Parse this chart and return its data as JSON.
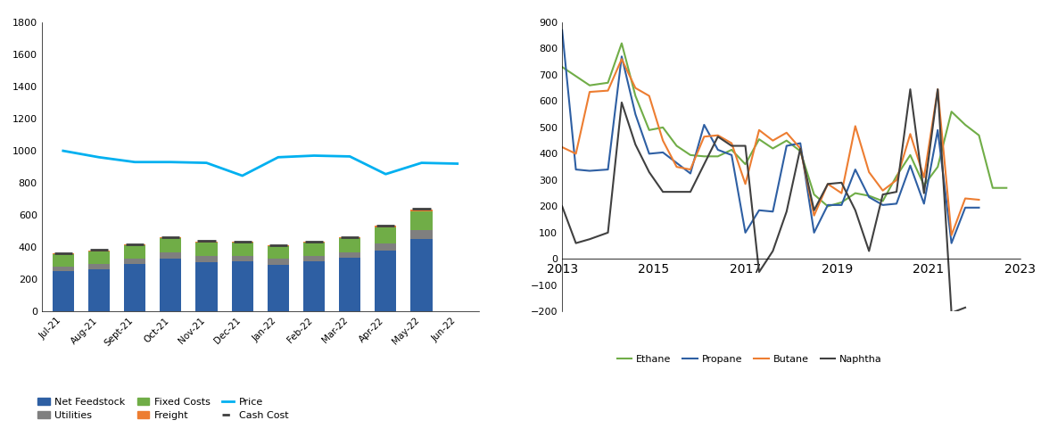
{
  "left_chart": {
    "months": [
      "Jul-21",
      "Aug-21",
      "Sept-21",
      "Oct-21",
      "Nov-21",
      "Dec-21",
      "Jan-22",
      "Feb-22",
      "Mar-22",
      "Apr-22",
      "May-22",
      "Jun-22"
    ],
    "net_feedstock": [
      250,
      265,
      295,
      330,
      305,
      310,
      290,
      310,
      335,
      380,
      450,
      0
    ],
    "utilities": [
      30,
      30,
      35,
      38,
      40,
      38,
      38,
      38,
      35,
      45,
      55,
      0
    ],
    "fixed_costs": [
      75,
      80,
      85,
      90,
      85,
      80,
      80,
      80,
      85,
      100,
      120,
      0
    ],
    "freight": [
      5,
      5,
      5,
      5,
      5,
      5,
      5,
      5,
      5,
      8,
      12,
      0
    ],
    "price": [
      1000,
      960,
      930,
      930,
      925,
      845,
      960,
      970,
      965,
      855,
      925,
      920
    ],
    "cash_cost": [
      365,
      385,
      420,
      465,
      440,
      435,
      415,
      435,
      460,
      535,
      640,
      0
    ],
    "ylim": [
      0,
      1800
    ],
    "yticks": [
      0,
      200,
      400,
      600,
      800,
      1000,
      1200,
      1400,
      1600,
      1800
    ],
    "bar_color_feedstock": "#2E5FA3",
    "bar_color_utilities": "#7F7F7F",
    "bar_color_fixed": "#70AD47",
    "bar_color_freight": "#ED7D31",
    "line_color_price": "#00B0F0",
    "line_color_cash": "#3F3F3F"
  },
  "right_chart": {
    "years_ethane": [
      2013.0,
      2013.3,
      2013.6,
      2014.0,
      2014.3,
      2014.6,
      2014.9,
      2015.2,
      2015.5,
      2015.8,
      2016.1,
      2016.4,
      2016.7,
      2017.0,
      2017.3,
      2017.6,
      2017.9,
      2018.2,
      2018.5,
      2018.8,
      2019.1,
      2019.4,
      2019.7,
      2020.0,
      2020.3,
      2020.6,
      2020.9,
      2021.2,
      2021.5,
      2021.8,
      2022.1,
      2022.4,
      2022.7
    ],
    "ethane": [
      730,
      695,
      660,
      670,
      820,
      620,
      490,
      500,
      430,
      395,
      390,
      390,
      415,
      360,
      455,
      420,
      450,
      410,
      245,
      200,
      215,
      250,
      240,
      220,
      315,
      395,
      280,
      350,
      560,
      510,
      470,
      270,
      270
    ],
    "years_propane": [
      2013.0,
      2013.3,
      2013.6,
      2014.0,
      2014.3,
      2014.6,
      2014.9,
      2015.2,
      2015.5,
      2015.8,
      2016.1,
      2016.4,
      2016.7,
      2017.0,
      2017.3,
      2017.6,
      2017.9,
      2018.2,
      2018.5,
      2018.8,
      2019.1,
      2019.4,
      2019.7,
      2020.0,
      2020.3,
      2020.6,
      2020.9,
      2021.2,
      2021.5,
      2021.8,
      2022.1
    ],
    "propane": [
      870,
      340,
      335,
      340,
      770,
      550,
      400,
      405,
      365,
      325,
      510,
      415,
      395,
      100,
      185,
      180,
      430,
      440,
      100,
      205,
      205,
      340,
      235,
      205,
      210,
      355,
      210,
      490,
      60,
      195,
      195
    ],
    "years_butane": [
      2013.0,
      2013.3,
      2013.6,
      2014.0,
      2014.3,
      2014.6,
      2014.9,
      2015.2,
      2015.5,
      2015.8,
      2016.1,
      2016.4,
      2016.7,
      2017.0,
      2017.3,
      2017.6,
      2017.9,
      2018.2,
      2018.5,
      2018.8,
      2019.1,
      2019.4,
      2019.7,
      2020.0,
      2020.3,
      2020.6,
      2020.9,
      2021.2,
      2021.5,
      2021.8,
      2022.1
    ],
    "butane": [
      425,
      400,
      635,
      640,
      760,
      650,
      620,
      450,
      350,
      340,
      465,
      470,
      440,
      285,
      490,
      450,
      480,
      420,
      165,
      285,
      250,
      505,
      330,
      260,
      300,
      475,
      310,
      645,
      90,
      230,
      225
    ],
    "years_naphtha": [
      2013.0,
      2013.3,
      2013.6,
      2014.0,
      2014.3,
      2014.6,
      2014.9,
      2015.2,
      2015.5,
      2015.8,
      2016.1,
      2016.4,
      2016.7,
      2017.0,
      2017.3,
      2017.6,
      2017.9,
      2018.2,
      2018.5,
      2018.8,
      2019.1,
      2019.4,
      2019.7,
      2020.0,
      2020.3,
      2020.6,
      2020.9,
      2021.2,
      2021.5,
      2021.8
    ],
    "naphtha": [
      200,
      60,
      75,
      100,
      595,
      435,
      330,
      255,
      255,
      255,
      360,
      465,
      430,
      430,
      -50,
      30,
      180,
      420,
      185,
      285,
      290,
      185,
      30,
      245,
      255,
      645,
      250,
      645,
      -205,
      -185
    ],
    "xlim": [
      2013,
      2023
    ],
    "ylim": [
      -200,
      900
    ],
    "yticks": [
      -200,
      -100,
      0,
      100,
      200,
      300,
      400,
      500,
      600,
      700,
      800,
      900
    ],
    "color_ethane": "#70AD47",
    "color_propane": "#2E5FA3",
    "color_butane": "#ED7D31",
    "color_naphtha": "#404040"
  },
  "background_color": "#FFFFFF"
}
